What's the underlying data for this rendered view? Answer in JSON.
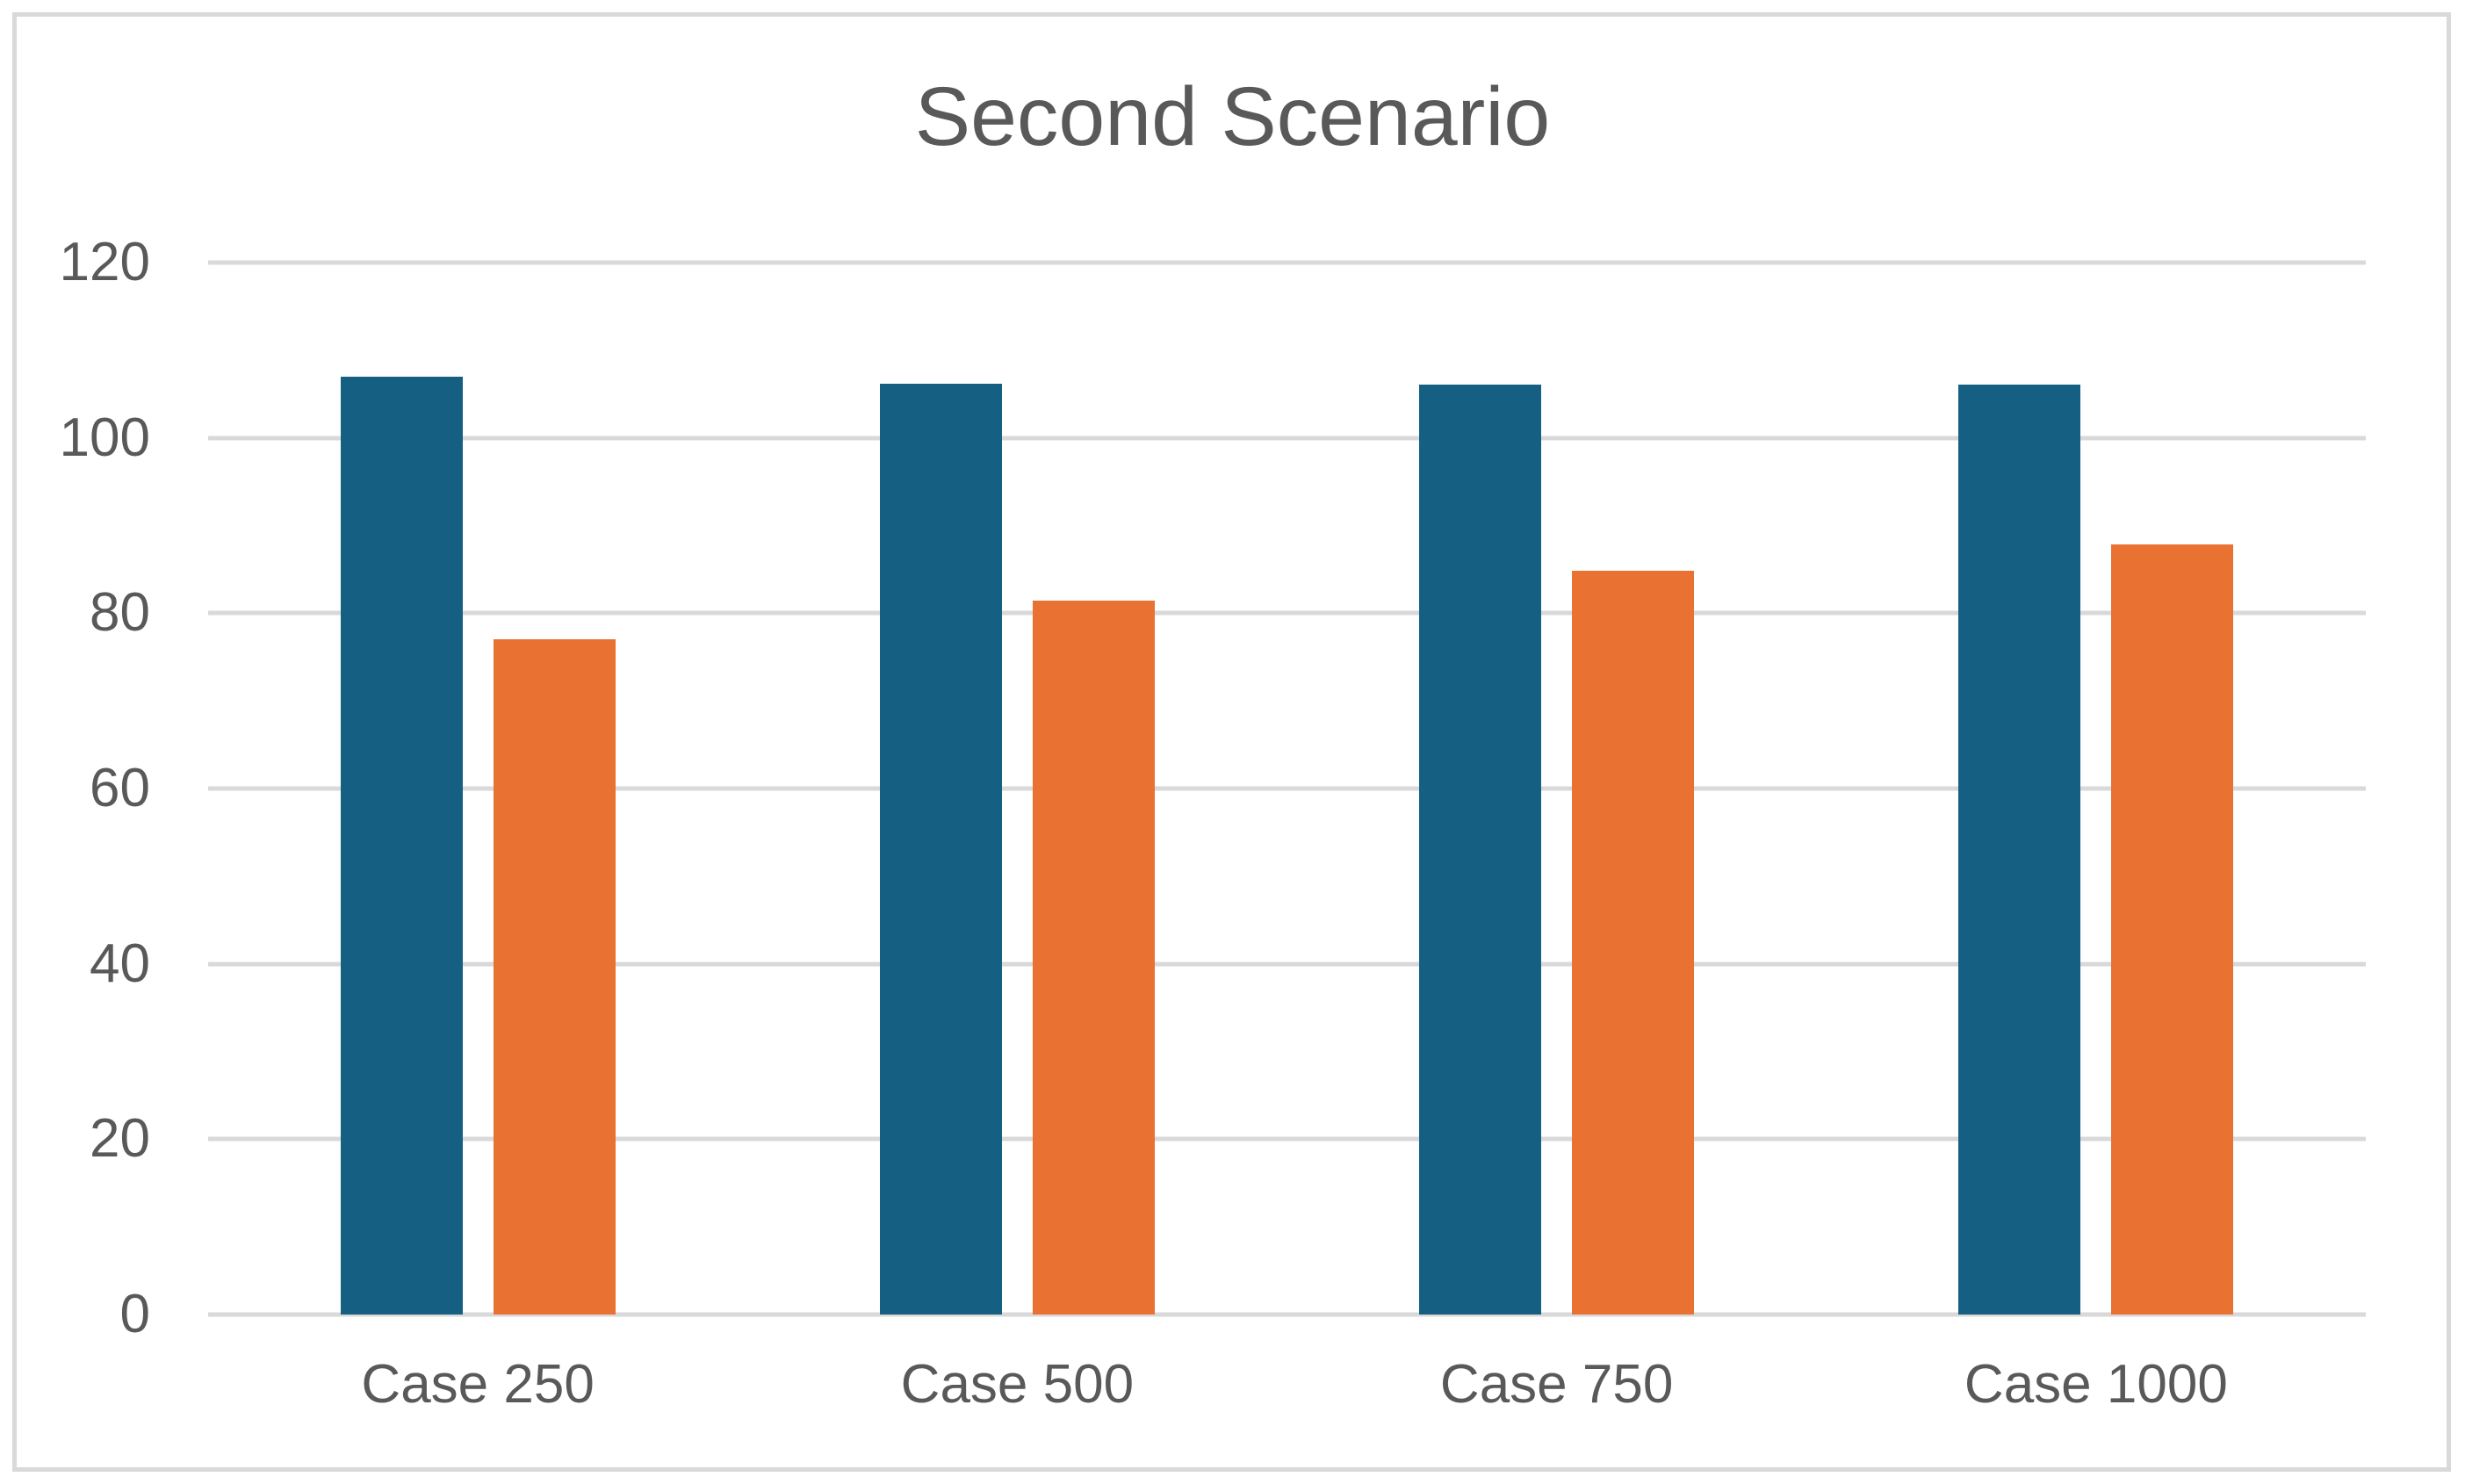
{
  "title": "Second Scenario",
  "colors": {
    "series_blue": "#156082",
    "series_orange": "#E97132",
    "gridline": "#D9D9D9",
    "frame_border": "#D9D9D9",
    "text": "#595959",
    "background": "#FFFFFF"
  },
  "chart_data": {
    "type": "bar",
    "title": "Second Scenario",
    "categories": [
      "Case 250",
      "Case 500",
      "Case 750",
      "Case 1000"
    ],
    "series": [
      {
        "name": "series_blue",
        "color": "#156082",
        "values": [
          107,
          106.2,
          106.1,
          106.1
        ]
      },
      {
        "name": "series_orange",
        "color": "#E97132",
        "values": [
          77,
          81.4,
          84.8,
          87.8
        ]
      }
    ],
    "xlabel": "",
    "ylabel": "",
    "ylim": [
      0,
      120
    ],
    "yticks": [
      0,
      20,
      40,
      60,
      80,
      100,
      120
    ],
    "grid": true,
    "legend": "none"
  }
}
